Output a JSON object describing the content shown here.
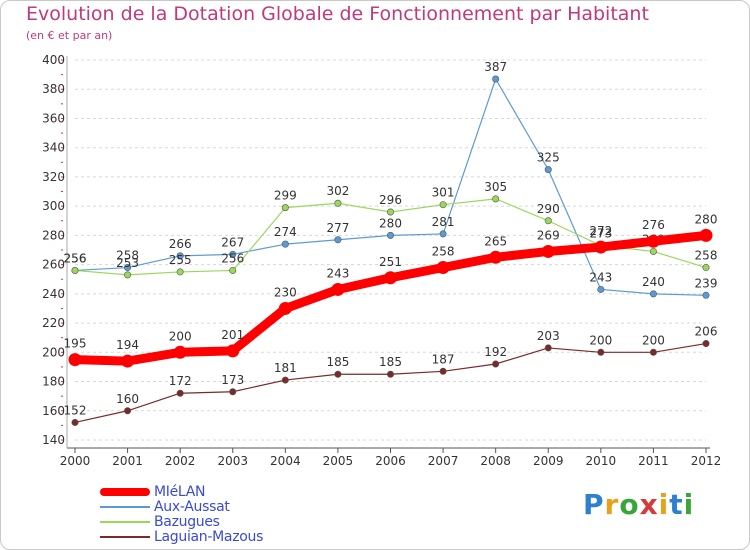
{
  "header": {
    "title": "Evolution de la Dotation Globale de Fonctionnement par Habitant",
    "subtitle": "(en € et par an)"
  },
  "logo": {
    "text": "Proxiti",
    "colors": [
      "#2f7fd1",
      "#e8a21a",
      "#3aa63a",
      "#d63a3a",
      "#e8a21a",
      "#2f7fd1",
      "#3aa63a"
    ]
  },
  "chart_data": {
    "type": "line",
    "title": "Evolution de la Dotation Globale de Fonctionnement par Habitant",
    "subtitle": "(en € et par an)",
    "x": [
      "2000",
      "2001",
      "2002",
      "2003",
      "2004",
      "2005",
      "2006",
      "2007",
      "2008",
      "2009",
      "2010",
      "2011",
      "2012"
    ],
    "ylim": [
      140,
      400
    ],
    "yticks": [
      140,
      160,
      180,
      200,
      220,
      240,
      260,
      280,
      300,
      320,
      340,
      360,
      380,
      400
    ],
    "grid": "horizontal dashed",
    "legend_position": "bottom-left",
    "series": [
      {
        "name": "Aux-Aussat",
        "color": "#5b9bd5",
        "values": [
          256,
          258,
          266,
          267,
          274,
          277,
          280,
          281,
          387,
          325,
          243,
          240,
          239
        ]
      },
      {
        "name": "Bazugues",
        "color": "#9ad85c",
        "values": [
          256,
          253,
          255,
          256,
          299,
          302,
          296,
          301,
          305,
          290,
          273,
          269,
          258
        ]
      },
      {
        "name": "Laguian-Mazous",
        "color": "#7a2a2a",
        "values": [
          152,
          160,
          172,
          173,
          181,
          185,
          185,
          187,
          192,
          203,
          200,
          200,
          206
        ]
      },
      {
        "name": "MIéLAN",
        "color": "#ff0000",
        "values": [
          195,
          194,
          200,
          201,
          230,
          243,
          251,
          258,
          265,
          269,
          272,
          276,
          280
        ]
      }
    ],
    "legend": [
      "MIéLAN",
      "Aux-Aussat",
      "Bazugues",
      "Laguian-Mazous"
    ]
  }
}
